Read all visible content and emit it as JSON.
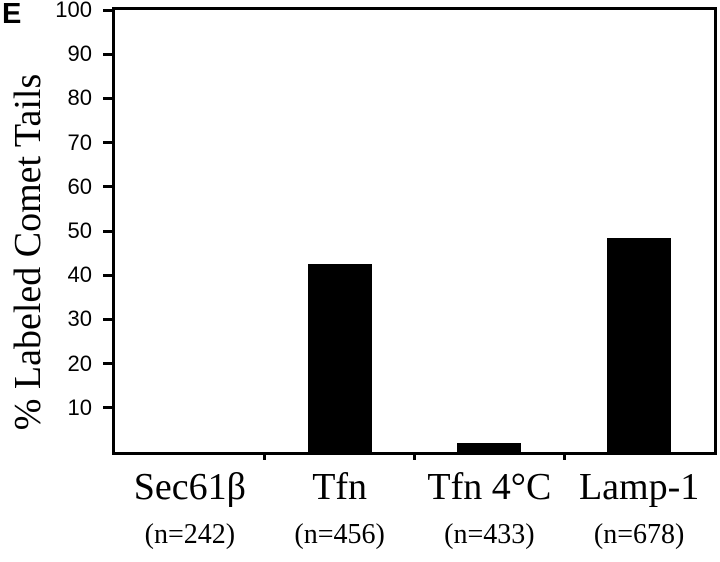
{
  "panel_label": "E",
  "chart_data": {
    "type": "bar",
    "categories": [
      "Sec61β",
      "Tfn",
      "Tfn 4°C",
      "Lamp-1"
    ],
    "sublabels": [
      "(n=242)",
      "(n=456)",
      "(n=433)",
      "(n=678)"
    ],
    "values": [
      0,
      42.5,
      2,
      48.5
    ],
    "title": "",
    "xlabel": "",
    "ylabel": "% Labeled Comet Tails",
    "ylim": [
      0,
      100
    ],
    "yticks": [
      10,
      20,
      30,
      40,
      50,
      60,
      70,
      80,
      90,
      100
    ],
    "grid": false,
    "legend_position": "none",
    "bar_color": "#000000",
    "axis_color": "#000000",
    "background_color": "#ffffff"
  }
}
